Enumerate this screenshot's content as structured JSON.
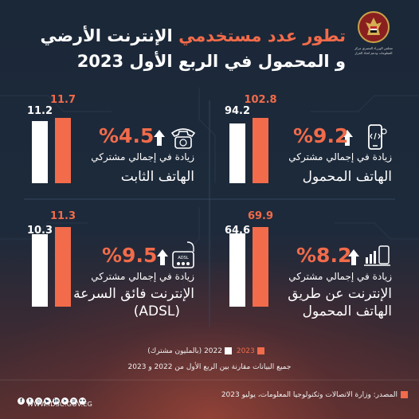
{
  "title": {
    "line1_highlight": "تطور عدد مستخدمي",
    "line1_rest": "الإنترنت الأرضي",
    "line2": "و المحمول في الربع الأول 2023"
  },
  "logo": {
    "caption": "مجلس الوزراء المصري مركز المعلومات ودعم اتخاذ القرار"
  },
  "colors": {
    "y2022": "#ffffff",
    "y2023": "#f26b4a",
    "background": "#1d2a3b"
  },
  "chart_data": [
    {
      "type": "bar",
      "name_line1": "الهاتف المحمول",
      "subtitle": "زيادة في إجمالي مشتركي",
      "change": "%9.2",
      "icon": "mobile-phone-icon",
      "categories": [
        "2022",
        "2023"
      ],
      "values": [
        94.2,
        102.8
      ],
      "labels": [
        "94.2",
        "102.8"
      ]
    },
    {
      "type": "bar",
      "name_line1": "الهاتف الثابت",
      "subtitle": "زيادة في إجمالي مشتركي",
      "change": "%4.5",
      "icon": "landline-phone-icon",
      "categories": [
        "2022",
        "2023"
      ],
      "values": [
        11.2,
        11.7
      ],
      "labels": [
        "11.2",
        "11.7"
      ]
    },
    {
      "type": "bar",
      "name_line1": "الإنترنت عن طريق",
      "name_line2": "الهاتف المحمول",
      "subtitle": "زيادة في إجمالي مشتركي",
      "change": "%8.2",
      "icon": "mobile-internet-chart-icon",
      "categories": [
        "2022",
        "2023"
      ],
      "values": [
        64.6,
        69.9
      ],
      "labels": [
        "64.6",
        "69.9"
      ]
    },
    {
      "type": "bar",
      "name_line1": "الإنترنت فائق السرعة",
      "name_line2": "(ADSL)",
      "subtitle": "زيادة في إجمالي مشتركي",
      "change": "%9.5",
      "icon": "adsl-router-icon",
      "icon_label": "ADSL",
      "categories": [
        "2022",
        "2023"
      ],
      "values": [
        10.3,
        11.3
      ],
      "labels": [
        "10.3",
        "11.3"
      ]
    }
  ],
  "legend": {
    "y2023": "2023",
    "y2022": "2022",
    "unit": "(بالمليون مشترك)"
  },
  "note": "جميع البيانات مقارنة بين الربع الأول من 2022 و 2023",
  "source": "المصدر: وزارة الاتصالات وتكنولوجيا المعلومات، يوليو 2023",
  "website": "WWW.IDSC.GOV.EG",
  "social_icons": [
    "facebook-icon",
    "twitter-icon",
    "instagram-icon",
    "youtube-icon",
    "linkedin-icon",
    "telegram-icon",
    "soundcloud-icon",
    "flickr-icon"
  ]
}
